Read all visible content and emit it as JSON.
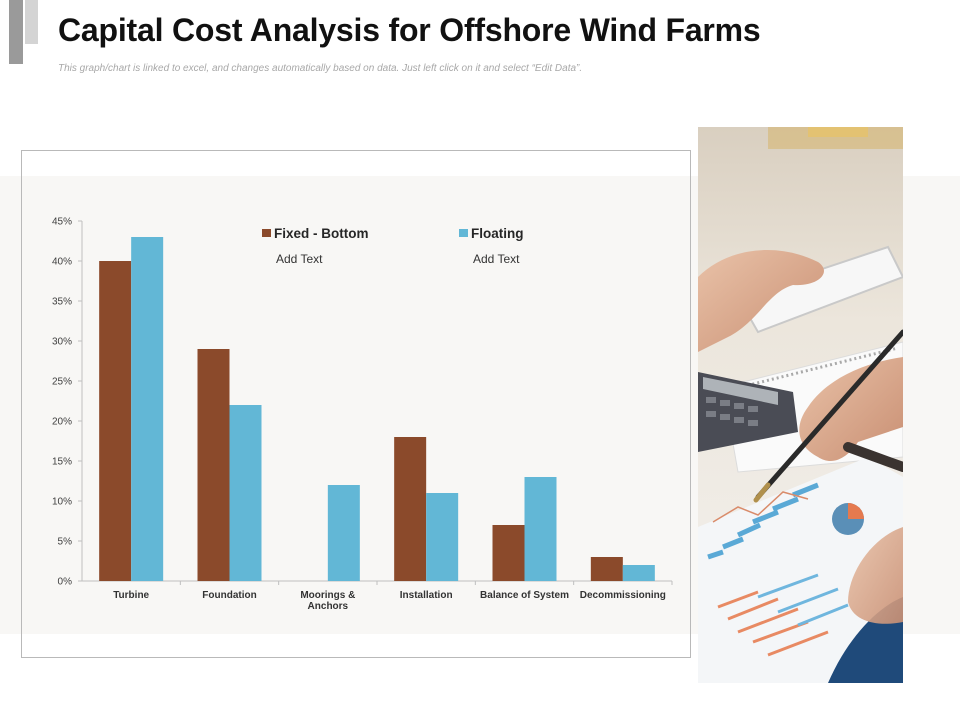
{
  "header": {
    "title": "Capital Cost Analysis for Offshore Wind Farms",
    "subtitle": "This graph/chart is linked to excel, and changes automatically based on data. Just left click on it and select “Edit Data”."
  },
  "colors": {
    "fixed_bottom": "#8b4a2b",
    "floating": "#62b7d6"
  },
  "photo": {
    "icon": "office-desk-photo"
  },
  "chart_data": {
    "type": "bar",
    "categories": [
      "Turbine",
      "Foundation",
      "Moorings & Anchors",
      "Installation",
      "Balance of System",
      "Decommissioning"
    ],
    "category_lines": [
      [
        "Turbine"
      ],
      [
        "Foundation"
      ],
      [
        "Moorings &",
        "Anchors"
      ],
      [
        "Installation"
      ],
      [
        "Balance of System"
      ],
      [
        "Decommissioning"
      ]
    ],
    "series": [
      {
        "name": "Fixed - Bottom",
        "values": [
          40,
          29,
          0,
          18,
          7,
          3
        ],
        "color": "#8b4a2b",
        "legend_text": "Add Text"
      },
      {
        "name": "Floating",
        "values": [
          43,
          22,
          12,
          11,
          13,
          2
        ],
        "color": "#62b7d6",
        "legend_text": "Add Text"
      }
    ],
    "ylim": [
      0,
      45
    ],
    "yticks": [
      0,
      5,
      10,
      15,
      20,
      25,
      30,
      35,
      40,
      45
    ],
    "ytick_labels": [
      "0%",
      "5%",
      "10%",
      "15%",
      "20%",
      "25%",
      "30%",
      "35%",
      "40%",
      "45%"
    ],
    "legend_position": "top",
    "grid": false
  }
}
